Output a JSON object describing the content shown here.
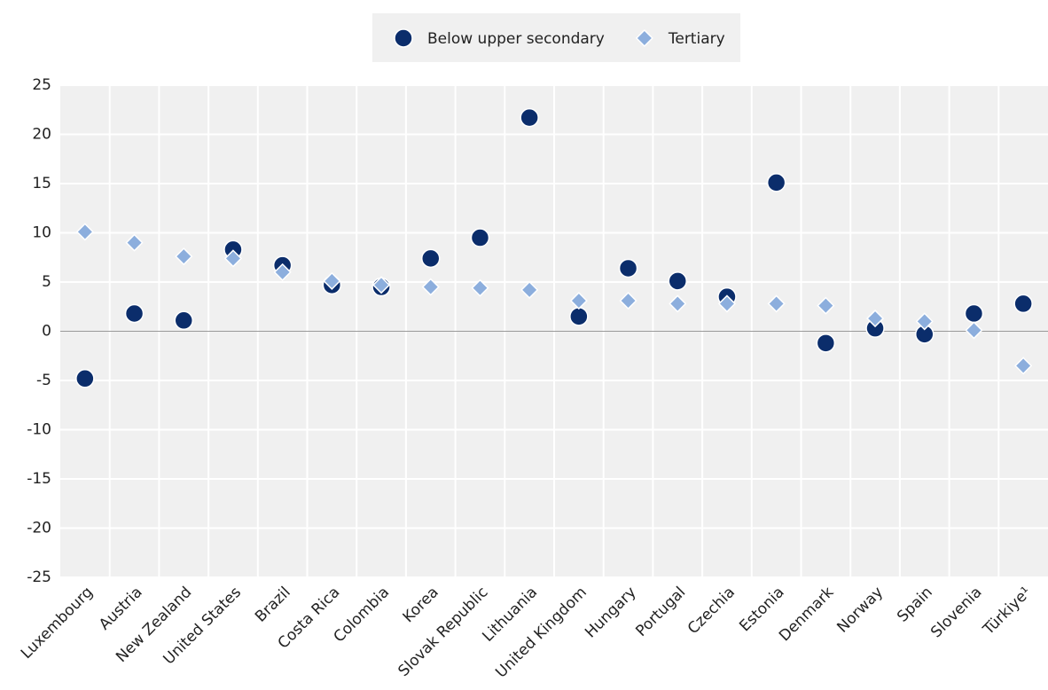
{
  "chart_data": {
    "type": "dot",
    "categories": [
      "Luxembourg",
      "Austria",
      "New Zealand",
      "United States",
      "Brazil",
      "Costa Rica",
      "Colombia",
      "Korea",
      "Slovak Republic",
      "Lithuania",
      "United Kingdom",
      "Hungary",
      "Portugal",
      "Czechia",
      "Estonia",
      "Denmark",
      "Norway",
      "Spain",
      "Slovenia",
      "Türkiye¹"
    ],
    "series": [
      {
        "name": "Below upper secondary",
        "color": "#0b2d6b",
        "marker": "circle",
        "values": [
          -4.8,
          1.8,
          1.1,
          8.3,
          6.7,
          4.7,
          4.5,
          7.4,
          9.5,
          21.7,
          1.5,
          6.4,
          5.1,
          3.5,
          15.1,
          -1.2,
          0.3,
          -0.3,
          1.8,
          2.8
        ]
      },
      {
        "name": "Tertiary",
        "color": "#8caedd",
        "marker": "diamond",
        "values": [
          10.1,
          9.0,
          7.6,
          7.4,
          6.0,
          5.1,
          4.7,
          4.5,
          4.4,
          4.2,
          3.1,
          3.1,
          2.8,
          2.8,
          2.8,
          2.6,
          1.3,
          1.0,
          0.1,
          -3.5
        ]
      }
    ],
    "ylim": [
      -25,
      25
    ],
    "yticks": [
      -25,
      -20,
      -15,
      -10,
      -5,
      0,
      5,
      10,
      15,
      20,
      25
    ],
    "grid": true,
    "legend": "top"
  }
}
